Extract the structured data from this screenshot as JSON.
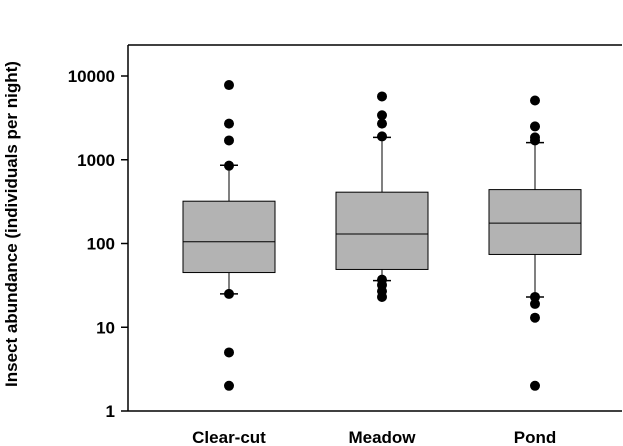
{
  "chart_data": {
    "type": "box",
    "title": "",
    "xlabel": "",
    "ylabel": "Insect abundance (individuals per night)",
    "yscale": "log",
    "ylim": [
      1,
      20000
    ],
    "yticks": [
      {
        "value": 1,
        "label": "1"
      },
      {
        "value": 10,
        "label": "10"
      },
      {
        "value": 100,
        "label": "100"
      },
      {
        "value": 1000,
        "label": "1000"
      },
      {
        "value": 10000,
        "label": "10000"
      }
    ],
    "categories": [
      "Clear-cut",
      "Meadow",
      "Pond"
    ],
    "box_fill": "#b3b3b3",
    "boxes": [
      {
        "category": "Clear-cut",
        "whisker_low": 25,
        "q1": 45,
        "median": 105,
        "q3": 320,
        "whisker_high": 860,
        "outliers": [
          2,
          5,
          25,
          850,
          1700,
          2700,
          7800
        ]
      },
      {
        "category": "Meadow",
        "whisker_low": 36,
        "q1": 49,
        "median": 130,
        "q3": 410,
        "whisker_high": 1850,
        "outliers": [
          23,
          27,
          32,
          37,
          1900,
          2700,
          3400,
          5700
        ]
      },
      {
        "category": "Pond",
        "whisker_low": 23,
        "q1": 74,
        "median": 175,
        "q3": 440,
        "whisker_high": 1600,
        "outliers": [
          2,
          13,
          19,
          23,
          1700,
          1850,
          2500,
          5100
        ]
      }
    ]
  }
}
